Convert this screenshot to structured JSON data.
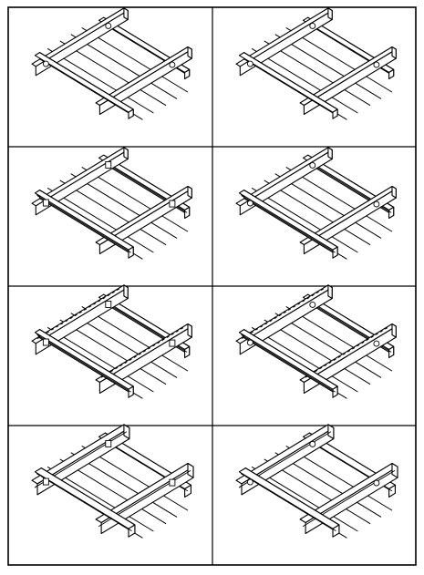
{
  "sheet": {
    "columns": 2,
    "rows": 4,
    "line_color": "#000000",
    "background": "#ffffff"
  },
  "panels": [
    {
      "row": 0,
      "col": 0,
      "cross_bearer": "flat-bar",
      "main_bearers": "flat-bar",
      "clip": "round"
    },
    {
      "row": 0,
      "col": 1,
      "cross_bearer": "flat-bar",
      "main_bearers": "flat-bar",
      "clip": "round"
    },
    {
      "row": 1,
      "col": 0,
      "cross_bearer": "flat-bar",
      "main_bearers": "channel",
      "clip": "saddle"
    },
    {
      "row": 1,
      "col": 1,
      "cross_bearer": "flat-bar",
      "main_bearers": "channel",
      "clip": "round"
    },
    {
      "row": 2,
      "col": 0,
      "cross_bearer": "slotted-bar",
      "main_bearers": "channel",
      "clip": "saddle"
    },
    {
      "row": 2,
      "col": 1,
      "cross_bearer": "slotted-bar",
      "main_bearers": "channel",
      "clip": "round"
    },
    {
      "row": 3,
      "col": 0,
      "cross_bearer": "box",
      "main_bearers": "box",
      "clip": "saddle"
    },
    {
      "row": 3,
      "col": 1,
      "cross_bearer": "box",
      "main_bearers": "box",
      "clip": "round"
    }
  ]
}
